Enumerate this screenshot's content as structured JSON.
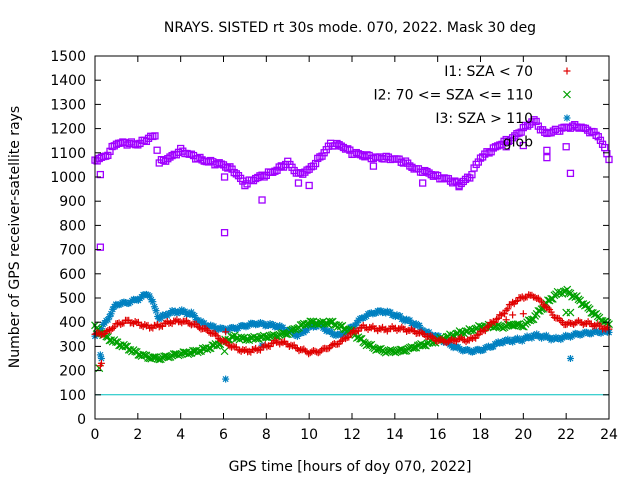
{
  "chart_data": {
    "type": "scatter",
    "title": "NRAYS. SISTED rt 30s mode. 070, 2022. Mask 30 deg",
    "xlabel": "GPS time [hours of doy 070, 2022]",
    "ylabel": "Number of GPS receiver-satellite rays",
    "xlim": [
      0,
      24
    ],
    "ylim": [
      0,
      1500
    ],
    "xticks": [
      0,
      2,
      4,
      6,
      8,
      10,
      12,
      14,
      16,
      18,
      20,
      22,
      24
    ],
    "yticks": [
      0,
      100,
      200,
      300,
      400,
      500,
      600,
      700,
      800,
      900,
      1000,
      1100,
      1200,
      1300,
      1400,
      1500
    ],
    "reference_line": {
      "y": 100,
      "color": "#00c0c0"
    },
    "legend_position": "top-right",
    "series": [
      {
        "name": "I1: SZA < 70",
        "marker": "+",
        "color": "#e00000",
        "x": [
          0,
          0.5,
          1,
          1.5,
          2,
          2.5,
          3,
          3.5,
          4,
          4.5,
          5,
          5.5,
          6,
          6.5,
          7,
          7.5,
          8,
          8.5,
          9,
          9.5,
          10,
          10.5,
          11,
          11.5,
          12,
          12.5,
          13,
          13.5,
          14,
          14.5,
          15,
          15.5,
          16,
          16.5,
          17,
          17.5,
          18,
          18.5,
          19,
          19.5,
          20,
          20.5,
          21,
          21.5,
          22,
          22.5,
          23,
          23.5,
          24
        ],
        "values": [
          350,
          355,
          390,
          405,
          395,
          380,
          385,
          400,
          405,
          395,
          375,
          355,
          320,
          295,
          280,
          285,
          300,
          320,
          310,
          290,
          275,
          280,
          300,
          320,
          355,
          380,
          375,
          370,
          375,
          370,
          360,
          345,
          325,
          320,
          330,
          325,
          355,
          395,
          430,
          480,
          505,
          510,
          470,
          420,
          390,
          400,
          395,
          385,
          370
        ]
      },
      {
        "name": "I2: 70 <= SZA <= 110",
        "marker": "x",
        "color": "#00a000",
        "x": [
          0,
          0.5,
          1,
          1.5,
          2,
          2.5,
          3,
          3.5,
          4,
          4.5,
          5,
          5.5,
          6,
          6.5,
          7,
          7.5,
          8,
          8.5,
          9,
          9.5,
          10,
          10.5,
          11,
          11.5,
          12,
          12.5,
          13,
          13.5,
          14,
          14.5,
          15,
          15.5,
          16,
          16.5,
          17,
          17.5,
          18,
          18.5,
          19,
          19.5,
          20,
          20.5,
          21,
          21.5,
          22,
          22.5,
          23,
          23.5,
          24
        ],
        "values": [
          380,
          340,
          315,
          295,
          270,
          255,
          250,
          260,
          270,
          275,
          285,
          300,
          320,
          340,
          330,
          335,
          340,
          345,
          355,
          380,
          400,
          395,
          400,
          380,
          360,
          320,
          295,
          280,
          280,
          285,
          300,
          310,
          325,
          340,
          355,
          365,
          380,
          385,
          380,
          390,
          385,
          420,
          470,
          515,
          530,
          500,
          460,
          420,
          390
        ]
      },
      {
        "name": "I3: SZA > 110",
        "marker": "*",
        "color": "#0080c0",
        "x": [
          0,
          0.5,
          1,
          1.5,
          2,
          2.5,
          3,
          3.5,
          4,
          4.5,
          5,
          5.5,
          6,
          6.5,
          7,
          7.5,
          8,
          8.5,
          9,
          9.5,
          10,
          10.5,
          11,
          11.5,
          12,
          12.5,
          13,
          13.5,
          14,
          14.5,
          15,
          15.5,
          16,
          16.5,
          17,
          17.5,
          18,
          18.5,
          19,
          19.5,
          20,
          20.5,
          21,
          21.5,
          22,
          22.5,
          23,
          23.5,
          24
        ],
        "values": [
          340,
          400,
          475,
          480,
          495,
          520,
          415,
          440,
          445,
          435,
          395,
          380,
          370,
          375,
          385,
          395,
          390,
          385,
          365,
          345,
          380,
          390,
          355,
          345,
          380,
          420,
          440,
          445,
          430,
          410,
          390,
          355,
          340,
          310,
          290,
          280,
          285,
          300,
          320,
          325,
          330,
          345,
          340,
          330,
          340,
          350,
          355,
          360,
          360
        ]
      },
      {
        "name": "glob",
        "marker": "square",
        "color": "#a000ff",
        "x": [
          0,
          0.5,
          1,
          1.5,
          2,
          2.5,
          2.8,
          3,
          3.5,
          4,
          4.5,
          5,
          5.5,
          6,
          6.5,
          7,
          7.5,
          8,
          8.5,
          9,
          9.5,
          10,
          10.5,
          11,
          11.5,
          12,
          12.5,
          13,
          13.5,
          14,
          14.5,
          15,
          15.5,
          16,
          16.5,
          17,
          17.5,
          18,
          18.5,
          19,
          19.5,
          20,
          20.5,
          21,
          21.5,
          22,
          22.5,
          23,
          23.5,
          24
        ],
        "values": [
          1070,
          1085,
          1140,
          1140,
          1135,
          1160,
          1170,
          1060,
          1080,
          1110,
          1090,
          1070,
          1060,
          1050,
          1025,
          970,
          995,
          1010,
          1030,
          1060,
          1010,
          1030,
          1080,
          1135,
          1130,
          1100,
          1090,
          1080,
          1080,
          1075,
          1060,
          1030,
          1020,
          1000,
          990,
          970,
          1000,
          1080,
          1110,
          1140,
          1160,
          1200,
          1235,
          1180,
          1190,
          1205,
          1210,
          1195,
          1170,
          1080
        ]
      }
    ],
    "outliers": {
      "glob": [
        [
          0.25,
          710
        ],
        [
          0.25,
          1010
        ],
        [
          6.05,
          770
        ],
        [
          6.05,
          1000
        ],
        [
          7.8,
          905
        ],
        [
          9.5,
          975
        ],
        [
          10,
          965
        ],
        [
          13,
          1045
        ],
        [
          15.3,
          975
        ],
        [
          17,
          960
        ],
        [
          19.2,
          1125
        ],
        [
          20,
          1130
        ],
        [
          21.1,
          1110
        ],
        [
          21.1,
          1080
        ],
        [
          22,
          1125
        ],
        [
          22.2,
          1015
        ]
      ],
      "I1: SZA < 70": [
        [
          0.25,
          220
        ],
        [
          0.3,
          230
        ],
        [
          6.1,
          360
        ],
        [
          19.2,
          410
        ],
        [
          19.5,
          430
        ],
        [
          20,
          435
        ]
      ],
      "I2: 70 <= SZA <= 110": [
        [
          0.2,
          210
        ],
        [
          6.05,
          280
        ],
        [
          22,
          440
        ],
        [
          22.2,
          440
        ]
      ],
      "I3: SZA > 110": [
        [
          0.25,
          265
        ],
        [
          0.3,
          250
        ],
        [
          6.1,
          165
        ],
        [
          7.8,
          305
        ],
        [
          22.2,
          250
        ]
      ]
    }
  }
}
